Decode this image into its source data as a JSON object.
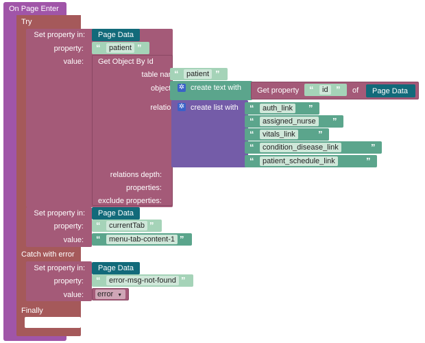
{
  "event": {
    "title": "On Page Enter"
  },
  "try": {
    "label": "Try",
    "set1": {
      "label": "Set property in:",
      "target": "Page Data",
      "property_label": "property:",
      "property_value": "patient",
      "value_label": "value:",
      "get_object": {
        "title": "Get Object By Id",
        "table_name_label": "table name:",
        "table_name": "patient",
        "object_id_label": "object id:",
        "create_text_label": "create text with",
        "get_property_label": "Get property",
        "get_property_key": "id",
        "of_label": "of",
        "get_property_source": "Page Data",
        "relations_label": "relations:",
        "create_list_label": "create list with",
        "relations": [
          "auth_link",
          "assigned_nurse",
          "vitals_link",
          "condition_disease_link",
          "patient_schedule_link"
        ],
        "relations_depth_label": "relations depth:",
        "properties_label": "properties:",
        "exclude_properties_label": "exclude properties:"
      }
    },
    "set2": {
      "label": "Set property in:",
      "target": "Page Data",
      "property_label": "property:",
      "property_value": "currentTab",
      "value_label": "value:",
      "value": "menu-tab-content-1"
    }
  },
  "catch": {
    "label": "Catch with error",
    "set": {
      "label": "Set property in:",
      "target": "Page Data",
      "property_label": "property:",
      "property_value": "error-msg-not-found",
      "value_label": "value:",
      "value": "error"
    }
  },
  "finally": {
    "label": "Finally"
  },
  "colors": {
    "event": "#a055a8",
    "control": "#a5595a",
    "set_block": "#a45a78",
    "page_data": "#126a7a",
    "text": "#5ba58c",
    "list": "#745ca8"
  }
}
